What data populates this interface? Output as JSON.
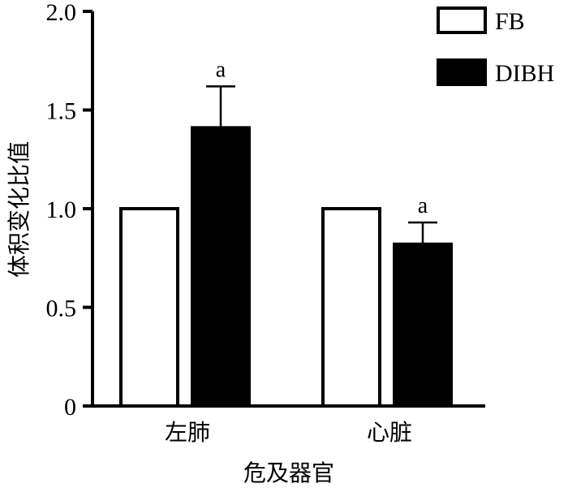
{
  "chart_data": {
    "type": "bar",
    "title": "",
    "xlabel": "危及器官",
    "ylabel": "体积变化比值",
    "ylim": [
      0,
      2.0
    ],
    "yticks": [
      0,
      0.5,
      1.0,
      1.5,
      2.0
    ],
    "ytick_labels": [
      "0",
      "0.5",
      "1.0",
      "1.5",
      "2.0"
    ],
    "categories": [
      "左肺",
      "心脏"
    ],
    "series": [
      {
        "name": "FB",
        "fill": "white",
        "values": [
          1.0,
          1.0
        ],
        "errors": [
          null,
          null
        ],
        "annotations": [
          "",
          ""
        ]
      },
      {
        "name": "DIBH",
        "fill": "black",
        "values": [
          1.41,
          0.82
        ],
        "errors": [
          0.21,
          0.11
        ],
        "annotations": [
          "a",
          "a"
        ]
      }
    ],
    "legend": {
      "position": "top-right",
      "entries": [
        "FB",
        "DIBH"
      ]
    },
    "grid": false
  },
  "colors": {
    "fb_fill": "#ffffff",
    "dibh_fill": "#000000",
    "stroke": "#000000"
  }
}
